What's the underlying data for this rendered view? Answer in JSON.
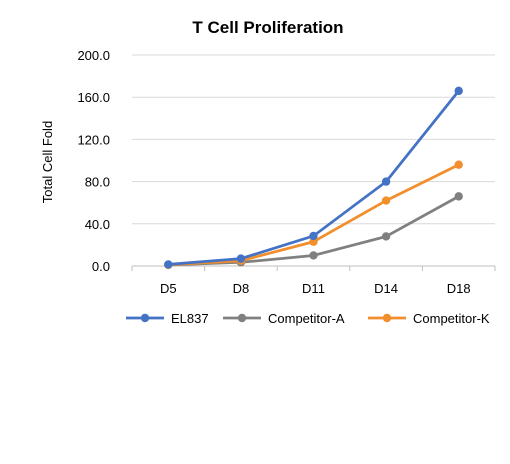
{
  "chart_data": {
    "type": "line",
    "title": "T Cell Proliferation",
    "xlabel": "",
    "ylabel": "Total Cell Fold",
    "categories": [
      "D5",
      "D8",
      "D11",
      "D14",
      "D18"
    ],
    "ylim": [
      0,
      200
    ],
    "yticks": [
      "0.0",
      "40.0",
      "80.0",
      "120.0",
      "160.0",
      "200.0"
    ],
    "ytick_values": [
      0,
      40,
      80,
      120,
      160,
      200
    ],
    "grid": true,
    "legend_position": "bottom",
    "series": [
      {
        "name": "EL837",
        "color": "#4472C4",
        "values": [
          1.5,
          7,
          28.5,
          80,
          166
        ]
      },
      {
        "name": "Competitor-A",
        "color": "#808080",
        "values": [
          1,
          3.5,
          10,
          28,
          66
        ]
      },
      {
        "name": "Competitor-K",
        "color": "#F28E2B",
        "values": [
          1.2,
          5,
          23,
          62,
          96
        ]
      }
    ]
  }
}
